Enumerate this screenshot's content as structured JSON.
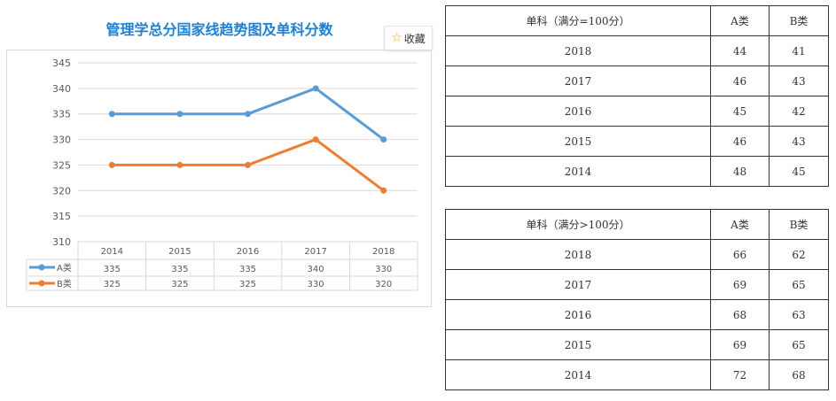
{
  "chart_data": {
    "type": "line",
    "title": "管理学总分国家线趋势图及单科分数",
    "categories": [
      "2014",
      "2015",
      "2016",
      "2017",
      "2018"
    ],
    "series": [
      {
        "name": "A类",
        "values": [
          335,
          335,
          335,
          340,
          330
        ],
        "color": "#5b9bd5"
      },
      {
        "name": "B类",
        "values": [
          325,
          325,
          325,
          330,
          320
        ],
        "color": "#ed7d31"
      }
    ],
    "ylim": [
      310,
      345
    ],
    "yticks": [
      "310",
      "315",
      "320",
      "325",
      "330",
      "335",
      "340",
      "345"
    ],
    "grid": true,
    "legend": "data-table-bottom"
  },
  "favorite": {
    "label": "收藏",
    "icon": "star-icon"
  },
  "tables": [
    {
      "header": [
        "单科（满分=100分）",
        "A类",
        "B类"
      ],
      "rows": [
        [
          "2018",
          "44",
          "41"
        ],
        [
          "2017",
          "46",
          "43"
        ],
        [
          "2016",
          "45",
          "42"
        ],
        [
          "2015",
          "46",
          "43"
        ],
        [
          "2014",
          "48",
          "45"
        ]
      ]
    },
    {
      "header": [
        "单科（满分>100分）",
        "A类",
        "B类"
      ],
      "rows": [
        [
          "2018",
          "66",
          "62"
        ],
        [
          "2017",
          "69",
          "65"
        ],
        [
          "2016",
          "68",
          "63"
        ],
        [
          "2015",
          "69",
          "65"
        ],
        [
          "2014",
          "72",
          "68"
        ]
      ]
    }
  ]
}
